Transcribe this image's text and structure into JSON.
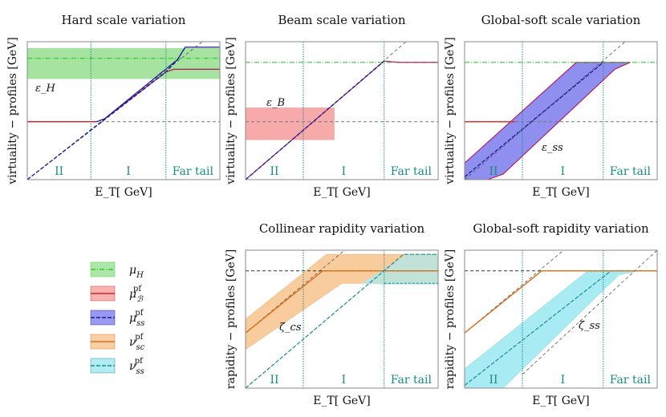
{
  "colors": {
    "mu_H": "#33cc33",
    "mu_H_band": "#a6e3a0",
    "mu_B": "#d62728",
    "mu_B_band": "#f7aaaa",
    "mu_ss": "#1a1a99",
    "mu_ss_band": "#8f8ff0",
    "mu_ss_edge": "#b0185a",
    "nu_sc": "#d9701a",
    "nu_sc_band": "#f9cc9d",
    "nu_ss": "#1a8a99",
    "nu_ss_band": "#a9ebf2",
    "region_line": "#1b8a86",
    "diag_dashed": "#555555"
  },
  "chart_data": [
    {
      "id": "hard",
      "type": "line",
      "title": "Hard scale variation",
      "xlabel": "E_T[ GeV]",
      "ylabel": "virtuality − profiles [GeV]",
      "regions": [
        "II",
        "I",
        "Far tail"
      ],
      "region_boundaries": [
        0.33,
        0.72
      ],
      "annotation": "ε_H",
      "series": [
        {
          "name": "μ_H",
          "y": 0.88,
          "band": [
            0.75,
            1.0
          ]
        },
        {
          "name": "μ_B^pf",
          "flat": 0.42,
          "rise_start": 0.34,
          "top": 0.75
        },
        {
          "name": "μ_ss^pf",
          "diag": [
            0.0,
            1.0
          ],
          "top": 0.97
        }
      ]
    },
    {
      "id": "beam",
      "type": "line",
      "title": "Beam scale variation",
      "xlabel": "E_T[ GeV]",
      "ylabel": "virtuality − profiles [GeV]",
      "regions": [
        "II",
        "I",
        "Far tail"
      ],
      "region_boundaries": [
        0.3,
        0.72
      ],
      "annotation": "ε_B",
      "series": [
        {
          "name": "μ_H",
          "y": 0.85
        },
        {
          "name": "μ_B^pf",
          "flat": 0.42,
          "band": [
            0.29,
            0.55
          ]
        },
        {
          "name": "μ_ss^pf",
          "diag": [
            0.0,
            1.0
          ],
          "top": 0.85
        }
      ]
    },
    {
      "id": "globalsoft",
      "type": "line",
      "title": "Global-soft scale variation",
      "xlabel": "E_T[ GeV]",
      "ylabel": "virtuality − profiles [GeV]",
      "regions": [
        "II",
        "I",
        "Far tail"
      ],
      "region_boundaries": [
        0.3,
        0.72
      ],
      "annotation": "ε_ss",
      "series": [
        {
          "name": "μ_H",
          "y": 0.85
        },
        {
          "name": "μ_B^pf",
          "flat": 0.42
        },
        {
          "name": "μ_ss^pf",
          "diag": [
            0.0,
            1.0
          ],
          "top": 0.85,
          "band_shift": 0.13
        }
      ]
    },
    {
      "id": "collinear",
      "type": "line",
      "title": "Collinear rapidity variation",
      "xlabel": "E_T[ GeV]",
      "ylabel": "rapidity − profiles [GeV]",
      "regions": [
        "II",
        "I",
        "Far tail"
      ],
      "region_boundaries": [
        0.3,
        0.72
      ],
      "annotation": "ζ_cs",
      "series": [
        {
          "name": "ν_sc^pf",
          "flat": 0.85,
          "band_shift": 0.12
        },
        {
          "name": "ν_ss^pf",
          "diag": [
            0.0,
            1.0
          ],
          "top": 0.85,
          "band": [
            0.73,
            0.97
          ]
        }
      ]
    },
    {
      "id": "globalsoft_rap",
      "type": "line",
      "title": "Global-soft rapidity variation",
      "xlabel": "E_T[ GeV]",
      "ylabel": "rapidity − profiles [GeV]",
      "regions": [
        "II",
        "I",
        "Far tail"
      ],
      "region_boundaries": [
        0.3,
        0.72
      ],
      "annotation": "ζ_ss",
      "series": [
        {
          "name": "ν_sc^pf",
          "flat": 0.85
        },
        {
          "name": "ν_ss^pf",
          "diag": [
            0.0,
            1.0
          ],
          "top": 0.85,
          "band_shift": 0.16
        }
      ]
    }
  ],
  "legend": [
    {
      "key": "mu_H",
      "sym": "μ",
      "sub": "H",
      "sup": ""
    },
    {
      "key": "mu_B",
      "sym": "μ",
      "sub": "ℬ",
      "sup": "pf"
    },
    {
      "key": "mu_ss",
      "sym": "μ",
      "sub": "ss",
      "sup": "pf"
    },
    {
      "key": "nu_sc",
      "sym": "ν",
      "sub": "sc",
      "sup": "pf"
    },
    {
      "key": "nu_ss",
      "sym": "ν",
      "sub": "ss",
      "sup": "pf"
    }
  ]
}
